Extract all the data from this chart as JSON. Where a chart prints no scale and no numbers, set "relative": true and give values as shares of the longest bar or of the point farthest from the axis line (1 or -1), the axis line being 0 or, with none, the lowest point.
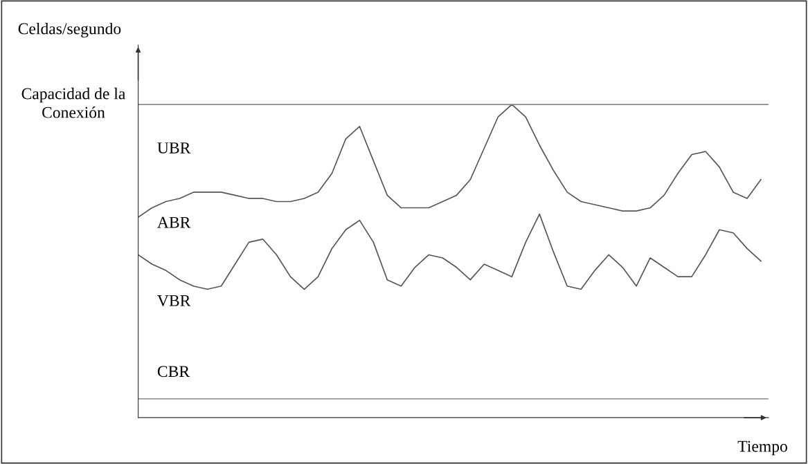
{
  "chart_data": {
    "type": "line",
    "relative": true,
    "xlabel": "Tiempo",
    "ylabel": "Celdas/segundo",
    "categories": [
      null,
      null,
      null,
      null,
      null,
      null,
      null,
      null,
      null,
      null,
      null,
      null,
      null,
      null,
      null,
      null,
      null,
      null,
      null,
      null,
      null,
      null,
      null,
      null,
      null,
      null,
      null,
      null,
      null,
      null,
      null,
      null,
      null,
      null,
      null,
      null,
      null,
      null,
      null,
      null,
      null,
      null,
      null,
      null,
      null,
      null
    ],
    "series": [
      {
        "color": "#555555",
        "values": [
          0.64,
          0.67,
          0.69,
          0.7,
          0.72,
          0.72,
          0.72,
          0.71,
          0.7,
          0.7,
          0.69,
          0.69,
          0.7,
          0.72,
          0.78,
          0.89,
          0.93,
          0.82,
          0.71,
          0.67,
          0.67,
          0.67,
          0.69,
          0.71,
          0.76,
          0.86,
          0.96,
          1.0,
          0.96,
          0.87,
          0.79,
          0.72,
          0.69,
          0.68,
          0.67,
          0.66,
          0.66,
          0.67,
          0.71,
          0.78,
          0.84,
          0.85,
          0.8,
          0.72,
          0.7,
          0.76
        ]
      },
      {
        "color": "#555555",
        "values": [
          0.52,
          0.49,
          0.47,
          0.44,
          0.42,
          0.41,
          0.42,
          0.49,
          0.56,
          0.57,
          0.52,
          0.45,
          0.41,
          0.45,
          0.54,
          0.6,
          0.63,
          0.56,
          0.44,
          0.42,
          0.48,
          0.52,
          0.51,
          0.48,
          0.44,
          0.49,
          0.47,
          0.45,
          0.56,
          0.65,
          0.53,
          0.42,
          0.41,
          0.47,
          0.52,
          0.48,
          0.42,
          0.51,
          0.48,
          0.45,
          0.45,
          0.52,
          0.6,
          0.59,
          0.54,
          0.5
        ]
      }
    ],
    "ref_lines": [
      {
        "axis": "y",
        "value": 1.0,
        "label": "Capacidad de la Conexión",
        "color": "#888888"
      },
      {
        "axis": "y",
        "value": 0.06,
        "color": "#888888"
      }
    ],
    "annotations": [
      "UBR",
      "ABR",
      "VBR",
      "CBR"
    ],
    "grid": false,
    "legend": false
  }
}
